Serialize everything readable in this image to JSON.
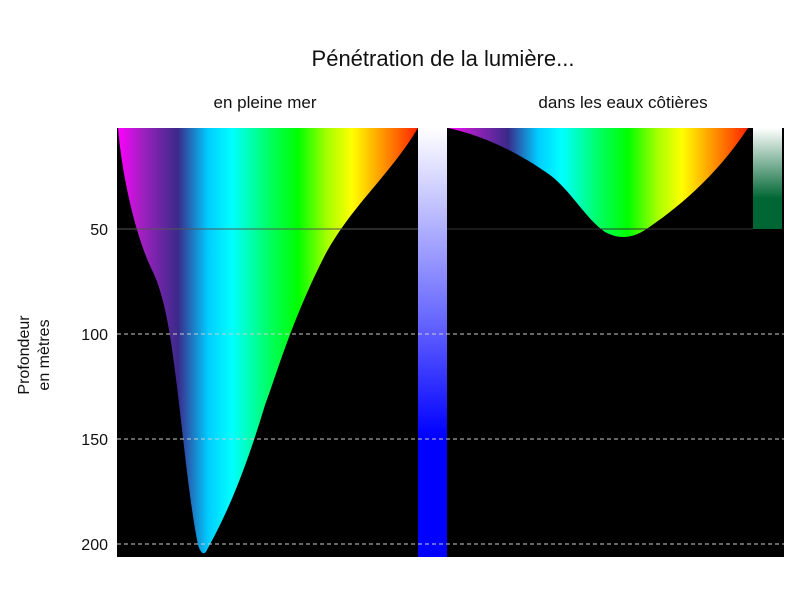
{
  "title": "Pénétration de la lumière...",
  "panels": [
    {
      "id": "open",
      "subtitle": "en pleine mer"
    },
    {
      "id": "coastal",
      "subtitle": "dans les eaux côtières"
    }
  ],
  "axis": {
    "ylabel_line1": "Profondeur",
    "ylabel_line2": "en mètres",
    "ticks": [
      {
        "label": "50",
        "value": 50
      },
      {
        "label": "100",
        "value": 100
      },
      {
        "label": "150",
        "value": 150
      },
      {
        "label": "200",
        "value": 200
      }
    ]
  },
  "colors": {
    "background": "#000000",
    "gridline": "#cccccc",
    "open_bar": "#0000ff",
    "coastal_bar": "#006633"
  },
  "chart_data": {
    "type": "area",
    "x_unit": "wavelength spectrum (violet → red)",
    "y_unit": "Profondeur en mètres",
    "ylim": [
      0,
      205
    ],
    "series": [
      {
        "name": "en pleine mer",
        "spectrum_position": [
          0.0,
          0.1,
          0.2,
          0.26,
          0.29,
          0.33,
          0.4,
          0.5,
          0.6,
          0.7,
          0.8,
          0.9,
          1.0
        ],
        "max_depth_m": [
          0,
          50,
          100,
          150,
          195,
          205,
          185,
          140,
          100,
          60,
          40,
          20,
          0
        ]
      },
      {
        "name": "dans les eaux côtières",
        "spectrum_position": [
          0.0,
          0.1,
          0.2,
          0.3,
          0.4,
          0.5,
          0.55,
          0.6,
          0.7,
          0.8,
          0.9,
          1.0
        ],
        "max_depth_m": [
          0,
          4,
          12,
          25,
          38,
          52,
          52,
          48,
          38,
          25,
          12,
          0
        ]
      }
    ],
    "bars": [
      {
        "panel": "en pleine mer",
        "depth_m": 205,
        "color": "#0000ff"
      },
      {
        "panel": "dans les eaux côtières",
        "depth_m": 50,
        "color": "#006633"
      }
    ]
  }
}
